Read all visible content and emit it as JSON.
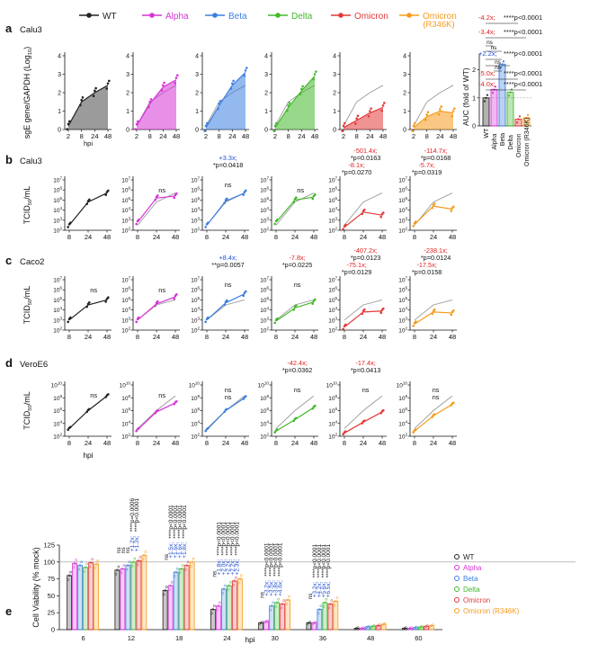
{
  "colors": {
    "WT": "#222222",
    "Alpha": "#d633d6",
    "Beta": "#3d7fe0",
    "Delta": "#43b82c",
    "Omicron": "#e23a3a",
    "OmicronR": "#f59b1c",
    "ref": "#9a9a9a",
    "red_text": "#e02020",
    "blue_text": "#1f4fd1"
  },
  "legend": {
    "items": [
      "WT",
      "Alpha",
      "Beta",
      "Delta",
      "Omicron",
      "Omicron",
      "(R346K)"
    ]
  },
  "panels": {
    "a": {
      "letter": "a",
      "cell": "Calu3",
      "ylabel": "sgE gene/GAPDH (Log",
      "ylabel_sub": "10",
      "ylabel_end": ")",
      "xlabel": "hpi"
    },
    "b": {
      "letter": "b",
      "cell": "Calu3",
      "ylabel": "TCID",
      "ylabel_sub": "50",
      "ylabel_end": "/mL"
    },
    "c": {
      "letter": "c",
      "cell": "Caco2",
      "ylabel": "TCID",
      "ylabel_sub": "50",
      "ylabel_end": "/mL"
    },
    "d": {
      "letter": "d",
      "cell": "VeroE6",
      "ylabel": "TCID",
      "ylabel_sub": "50",
      "ylabel_end": "/mL",
      "xlabel": "hpi"
    },
    "e": {
      "letter": "e",
      "ylabel": "Cell Viability (% mock)",
      "xlabel": "hpi"
    }
  },
  "chart_data": [
    {
      "id": "a",
      "type": "area",
      "title": "Calu3",
      "xlabel": "hpi",
      "ylabel": "sgE gene/GAPDH (Log10)",
      "x": [
        "2",
        "8",
        "24",
        "48"
      ],
      "ylim": [
        0,
        4
      ],
      "yticks": [
        "0",
        "1",
        "2",
        "3",
        "4"
      ],
      "series": [
        {
          "name": "WT",
          "values": [
            0.2,
            1.5,
            2.0,
            2.4
          ]
        },
        {
          "name": "Alpha",
          "values": [
            0.2,
            1.4,
            2.3,
            2.7
          ]
        },
        {
          "name": "Beta",
          "values": [
            0.1,
            1.3,
            2.4,
            3.1
          ]
        },
        {
          "name": "Delta",
          "values": [
            0.1,
            1.2,
            2.1,
            2.9
          ]
        },
        {
          "name": "Omicron",
          "values": [
            0.1,
            0.5,
            0.9,
            1.2
          ]
        },
        {
          "name": "Omicron (R346K)",
          "values": [
            0.1,
            0.7,
            1.0,
            0.9
          ]
        }
      ],
      "auc": {
        "ylabel": "AUC (fold of WT)",
        "ylim": [
          0,
          2.5
        ],
        "yticks": [
          "0",
          "1",
          "2"
        ],
        "categories": [
          "WT",
          "Alpha",
          "Beta",
          "Delta",
          "Omicron",
          "Omicron (R346K)"
        ],
        "values": [
          1.0,
          1.3,
          2.2,
          1.2,
          0.24,
          0.29
        ],
        "annotations": [
          {
            "fold": "-4.2x;",
            "text": "****p<0.0001"
          },
          {
            "fold": "-3.4x;",
            "text": "****p<0.0001"
          },
          {
            "fold": "+2.2x;",
            "text": "****p<0.0001"
          },
          {
            "fold": "-5.0x;",
            "text": "****p<0.0001"
          },
          {
            "fold": "-4.0x;",
            "text": "****p<0.0001"
          },
          {
            "fold": "",
            "text": "ns"
          },
          {
            "fold": "",
            "text": "ns"
          },
          {
            "fold": "",
            "text": "ns"
          },
          {
            "fold": "",
            "text": "ns"
          }
        ]
      }
    },
    {
      "id": "b",
      "type": "line",
      "title": "Calu3",
      "x": [
        "8",
        "24",
        "48"
      ],
      "ylim": [
        2,
        7
      ],
      "yticks": [
        "10",
        "10",
        "10",
        "10",
        "10",
        "10"
      ],
      "yexp": [
        "2",
        "3",
        "4",
        "5",
        "6",
        "7"
      ],
      "series": [
        {
          "name": "WT",
          "values": [
            2.5,
            4.8,
            5.7
          ]
        },
        {
          "name": "Alpha",
          "values": [
            2.8,
            5.2,
            5.4
          ]
        },
        {
          "name": "Beta",
          "values": [
            2.5,
            4.9,
            5.7
          ]
        },
        {
          "name": "Delta",
          "values": [
            2.8,
            5.0,
            5.3
          ]
        },
        {
          "name": "Omicron",
          "values": [
            2.3,
            3.8,
            3.5
          ]
        },
        {
          "name": "Omicron (R346K)",
          "values": [
            2.6,
            4.4,
            4.1
          ]
        }
      ],
      "annotations": [
        {
          "panel": 1,
          "lines": [
            "ns"
          ]
        },
        {
          "panel": 2,
          "lines": [
            "+3.3x;",
            "*p=0.0418",
            "ns"
          ]
        },
        {
          "panel": 3,
          "lines": [
            "ns"
          ]
        },
        {
          "panel": 4,
          "lines": [
            "-501.4x;",
            "*p=0.0163",
            "-8.1x;",
            "*p=0.0270"
          ]
        },
        {
          "panel": 5,
          "lines": [
            "-114.7x;",
            "*p=0.0168",
            "-5.7x;",
            "*p=0.0319"
          ]
        }
      ]
    },
    {
      "id": "c",
      "type": "line",
      "title": "Caco2",
      "x": [
        "8",
        "24",
        "48"
      ],
      "ylim": [
        2,
        7
      ],
      "yticks": [
        "10",
        "10",
        "10",
        "10",
        "10",
        "10"
      ],
      "yexp": [
        "2",
        "3",
        "4",
        "5",
        "6",
        "7"
      ],
      "series": [
        {
          "name": "WT",
          "values": [
            3.0,
            4.5,
            5.0
          ]
        },
        {
          "name": "Alpha",
          "values": [
            3.0,
            4.6,
            5.3
          ]
        },
        {
          "name": "Beta",
          "values": [
            3.0,
            4.7,
            5.6
          ]
        },
        {
          "name": "Delta",
          "values": [
            2.9,
            4.2,
            4.8
          ]
        },
        {
          "name": "Omicron",
          "values": [
            2.3,
            3.8,
            3.9
          ]
        },
        {
          "name": "Omicron (R346K)",
          "values": [
            2.6,
            3.8,
            3.7
          ]
        }
      ],
      "annotations": [
        {
          "panel": 0,
          "lines": [
            "ns"
          ]
        },
        {
          "panel": 1,
          "lines": [
            "ns"
          ]
        },
        {
          "panel": 2,
          "lines": [
            "+8.4x;",
            "**p=0.0057",
            "ns"
          ]
        },
        {
          "panel": 3,
          "lines": [
            "-7.8x;",
            "*p=0.0225",
            "ns"
          ]
        },
        {
          "panel": 4,
          "lines": [
            "-407.2x;",
            "*p=0.0123",
            "-75.1x;",
            "*p=0.0129"
          ]
        },
        {
          "panel": 5,
          "lines": [
            "-238.1x;",
            "*p=0.0124",
            "-17.5x;",
            "*p=0.0158"
          ]
        }
      ]
    },
    {
      "id": "d",
      "type": "line",
      "title": "VeroE6",
      "xlabel": "hpi",
      "x": [
        "8",
        "24",
        "48"
      ],
      "ylim": [
        2,
        10
      ],
      "yticks": [
        "10",
        "10",
        "10",
        "10",
        "10"
      ],
      "yexp": [
        "2",
        "4",
        "6",
        "8",
        "10"
      ],
      "series": [
        {
          "name": "WT",
          "values": [
            3.2,
            6.0,
            8.3
          ]
        },
        {
          "name": "Alpha",
          "values": [
            3.0,
            5.8,
            7.2
          ]
        },
        {
          "name": "Beta",
          "values": [
            3.0,
            6.0,
            8.0
          ]
        },
        {
          "name": "Delta",
          "values": [
            2.8,
            4.6,
            6.5
          ]
        },
        {
          "name": "Omicron",
          "values": [
            2.5,
            4.2,
            5.8
          ]
        },
        {
          "name": "Omicron (R346K)",
          "values": [
            2.8,
            5.2,
            7.0
          ]
        }
      ],
      "annotations": [
        {
          "panel": 0,
          "lines": [
            "ns"
          ]
        },
        {
          "panel": 1,
          "lines": [
            "ns"
          ]
        },
        {
          "panel": 2,
          "lines": [
            "ns",
            "ns"
          ]
        },
        {
          "panel": 3,
          "lines": [
            "-42.4x;",
            "*p=0.0362",
            "ns"
          ]
        },
        {
          "panel": 4,
          "lines": [
            "-17.4x;",
            "*p=0.0413",
            "ns"
          ]
        },
        {
          "panel": 5,
          "lines": [
            "ns",
            "ns"
          ]
        }
      ]
    },
    {
      "id": "e",
      "type": "bar",
      "xlabel": "hpi",
      "ylabel": "Cell Viability (% mock)",
      "categories": [
        "6",
        "12",
        "18",
        "24",
        "30",
        "36",
        "48",
        "60"
      ],
      "ylim": [
        0,
        125
      ],
      "yticks": [
        "0",
        "25",
        "50",
        "75",
        "100",
        "125"
      ],
      "reference_line": 100,
      "series": [
        {
          "name": "WT",
          "values": [
            80,
            88,
            58,
            30,
            10,
            10,
            2,
            2
          ]
        },
        {
          "name": "Alpha",
          "values": [
            98,
            90,
            65,
            35,
            12,
            10,
            2,
            2
          ]
        },
        {
          "name": "Beta",
          "values": [
            95,
            95,
            85,
            60,
            35,
            30,
            4,
            3
          ]
        },
        {
          "name": "Delta",
          "values": [
            92,
            100,
            90,
            65,
            40,
            40,
            5,
            4
          ]
        },
        {
          "name": "Omicron",
          "values": [
            99,
            102,
            95,
            72,
            38,
            38,
            6,
            5
          ]
        },
        {
          "name": "Omicron (R346K)",
          "values": [
            97,
            110,
            100,
            75,
            44,
            42,
            8,
            6
          ]
        }
      ],
      "legend": [
        "WT",
        "Alpha",
        "Beta",
        "Delta",
        "Omicron",
        "Omicron (R346K)"
      ],
      "annotations": [
        {
          "category": "12",
          "ns": [
            "ns",
            "ns",
            "ns"
          ],
          "folds": [
            "+1.2x;",
            "+1.3x;"
          ],
          "pvals": [
            "****p=0.0006",
            "****p<0.0001"
          ]
        },
        {
          "category": "18",
          "ns": [
            "ns"
          ],
          "folds": [
            "+1.5x;",
            "+1.6x;",
            "+1.6x;",
            "+1.8x;"
          ],
          "pvals": [
            "****p<0.0001",
            "****p<0.0001",
            "****p<0.0001",
            "****p<0.0001"
          ]
        },
        {
          "category": "24",
          "ns": [
            "ns"
          ],
          "folds": [
            "+1.8x;",
            "+2.0x;",
            "+2.2x;",
            "+2.2x;",
            "+2.3x;"
          ],
          "pvals": [
            "****p<0.0001",
            "****p<0.0001",
            "****p<0.0001",
            "****p<0.0001",
            "****p<0.0001"
          ]
        },
        {
          "category": "30",
          "ns": [
            "ns"
          ],
          "folds": [
            "+3.2x;",
            "+3.5x;",
            "+3.8x;",
            "+4.6x;"
          ],
          "pvals": [
            "****p<0.0001",
            "****p<0.0001",
            "****p<0.0001",
            "****p<0.0001"
          ]
        },
        {
          "category": "36",
          "ns": [
            "ns"
          ],
          "folds": [
            "+3.2x;",
            "+4.2x;",
            "+5.6x;",
            "+6.5x;"
          ],
          "pvals": [
            "****p<0.0001",
            "****p<0.0001",
            "****p<0.0001",
            "****p<0.0001"
          ]
        }
      ]
    }
  ]
}
